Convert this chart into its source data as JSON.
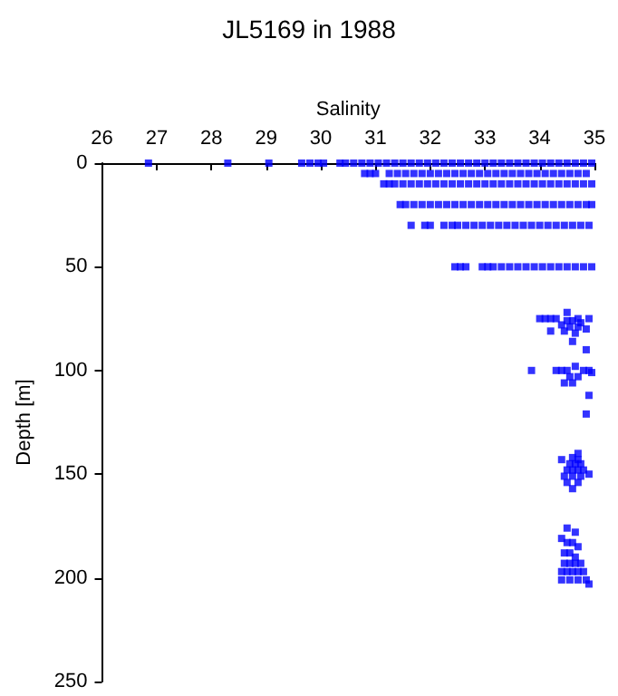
{
  "chart_data": {
    "type": "scatter",
    "title": "JL5169 in 1988",
    "xlabel": "Salinity",
    "ylabel": "Depth [m]",
    "xlim": [
      26,
      35
    ],
    "xticks": [
      26,
      27,
      28,
      29,
      30,
      31,
      32,
      33,
      34,
      35
    ],
    "ylim": [
      250,
      0
    ],
    "yticks": [
      0,
      50,
      100,
      150,
      200,
      250
    ],
    "grid": false,
    "marker": "square",
    "series": [
      {
        "color": "#0000ff",
        "x": [
          26.85,
          28.3,
          29.05,
          29.65,
          29.8,
          29.95,
          30.05,
          30.35,
          30.45,
          30.6,
          30.75,
          30.9,
          31.05,
          31.2,
          31.35,
          31.5,
          31.65,
          31.8,
          31.95,
          32.1,
          32.25,
          32.4,
          32.55,
          32.7,
          32.85,
          33.0,
          33.15,
          33.3,
          33.45,
          33.6,
          33.75,
          33.9,
          34.05,
          34.2,
          34.35,
          34.5,
          34.65,
          34.8,
          34.95
        ],
        "values": [
          0,
          0,
          0,
          0,
          0,
          0,
          0,
          0,
          0,
          0,
          0,
          0,
          0,
          0,
          0,
          0,
          0,
          0,
          0,
          0,
          0,
          0,
          0,
          0,
          0,
          0,
          0,
          0,
          0,
          0,
          0,
          0,
          0,
          0,
          0,
          0,
          0,
          0,
          0
        ]
      },
      {
        "color": "#0000ff",
        "x": [
          30.8,
          30.9,
          31.0,
          31.25,
          31.4,
          31.55,
          31.7,
          31.85,
          32.0,
          32.15,
          32.3,
          32.45,
          32.6,
          32.75,
          32.9,
          33.05,
          33.2,
          33.35,
          33.5,
          33.65,
          33.8,
          33.95,
          34.1,
          34.25,
          34.4,
          34.55,
          34.7,
          34.85
        ],
        "values": [
          5,
          5,
          5,
          5,
          5,
          5,
          5,
          5,
          5,
          5,
          5,
          5,
          5,
          5,
          5,
          5,
          5,
          5,
          5,
          5,
          5,
          5,
          5,
          5,
          5,
          5,
          5,
          5
        ]
      },
      {
        "color": "#0000ff",
        "x": [
          31.15,
          31.25,
          31.35,
          31.5,
          31.65,
          31.8,
          31.95,
          32.1,
          32.25,
          32.4,
          32.55,
          32.7,
          32.85,
          33.0,
          33.15,
          33.3,
          33.45,
          33.6,
          33.75,
          33.9,
          34.05,
          34.2,
          34.35,
          34.5,
          34.65,
          34.8,
          34.95
        ],
        "values": [
          10,
          10,
          10,
          10,
          10,
          10,
          10,
          10,
          10,
          10,
          10,
          10,
          10,
          10,
          10,
          10,
          10,
          10,
          10,
          10,
          10,
          10,
          10,
          10,
          10,
          10,
          10
        ]
      },
      {
        "color": "#0000ff",
        "x": [
          31.45,
          31.55,
          31.7,
          31.85,
          32.0,
          32.15,
          32.3,
          32.45,
          32.6,
          32.75,
          32.9,
          33.05,
          33.2,
          33.35,
          33.5,
          33.65,
          33.8,
          33.95,
          34.1,
          34.25,
          34.4,
          34.55,
          34.7,
          34.85,
          34.95
        ],
        "values": [
          20,
          20,
          20,
          20,
          20,
          20,
          20,
          20,
          20,
          20,
          20,
          20,
          20,
          20,
          20,
          20,
          20,
          20,
          20,
          20,
          20,
          20,
          20,
          20,
          20
        ]
      },
      {
        "color": "#0000ff",
        "x": [
          31.65,
          31.9,
          32.0,
          32.25,
          32.4,
          32.5,
          32.65,
          32.8,
          32.95,
          33.1,
          33.25,
          33.4,
          33.55,
          33.7,
          33.85,
          34.0,
          34.15,
          34.3,
          34.45,
          34.6,
          34.75,
          34.9
        ],
        "values": [
          30,
          30,
          30,
          30,
          30,
          30,
          30,
          30,
          30,
          30,
          30,
          30,
          30,
          30,
          30,
          30,
          30,
          30,
          30,
          30,
          30,
          30
        ]
      },
      {
        "color": "#0000ff",
        "x": [
          32.45,
          32.55,
          32.65,
          32.95,
          33.05,
          33.15,
          33.3,
          33.45,
          33.6,
          33.75,
          33.9,
          34.05,
          34.2,
          34.35,
          34.5,
          34.65,
          34.8,
          34.95
        ],
        "values": [
          50,
          50,
          50,
          50,
          50,
          50,
          50,
          50,
          50,
          50,
          50,
          50,
          50,
          50,
          50,
          50,
          50,
          50
        ]
      },
      {
        "color": "#0000ff",
        "x": [
          34.0,
          34.1,
          34.2,
          34.3,
          34.5,
          34.6,
          34.7,
          34.9,
          34.5,
          34.4,
          34.55,
          34.7,
          34.45,
          34.65,
          34.2,
          34.6,
          34.85,
          34.75,
          34.85
        ],
        "values": [
          75,
          75,
          75,
          75,
          76,
          76,
          75,
          75,
          72,
          78,
          79,
          79,
          81,
          82,
          81,
          86,
          90,
          77,
          80
        ]
      },
      {
        "color": "#0000ff",
        "x": [
          33.85,
          34.3,
          34.4,
          34.5,
          34.8,
          34.9,
          34.95,
          34.65,
          34.55,
          34.7,
          34.45,
          34.6,
          34.9,
          34.85
        ],
        "values": [
          100,
          100,
          100,
          100,
          100,
          100,
          101,
          98,
          103,
          103,
          106,
          106,
          112,
          121
        ]
      },
      {
        "color": "#0000ff",
        "x": [
          34.7,
          34.6,
          34.7,
          34.55,
          34.65,
          34.75,
          34.5,
          34.6,
          34.7,
          34.8,
          34.45,
          34.6,
          34.75,
          34.9,
          34.4,
          34.5,
          34.7,
          34.6
        ],
        "values": [
          140,
          142,
          143,
          145,
          145,
          145,
          148,
          148,
          148,
          148,
          151,
          151,
          151,
          150,
          143,
          154,
          154,
          157
        ]
      },
      {
        "color": "#0000ff",
        "x": [
          34.5,
          34.65,
          34.4,
          34.5,
          34.6,
          34.7,
          34.45,
          34.55,
          34.65,
          34.45,
          34.55,
          34.65,
          34.75,
          34.4,
          34.5,
          34.6,
          34.7,
          34.8,
          34.4,
          34.55,
          34.7,
          34.85,
          34.9
        ],
        "values": [
          176,
          178,
          181,
          183,
          183,
          185,
          188,
          188,
          190,
          193,
          193,
          193,
          193,
          197,
          197,
          197,
          197,
          197,
          201,
          201,
          201,
          201,
          203
        ]
      }
    ]
  }
}
